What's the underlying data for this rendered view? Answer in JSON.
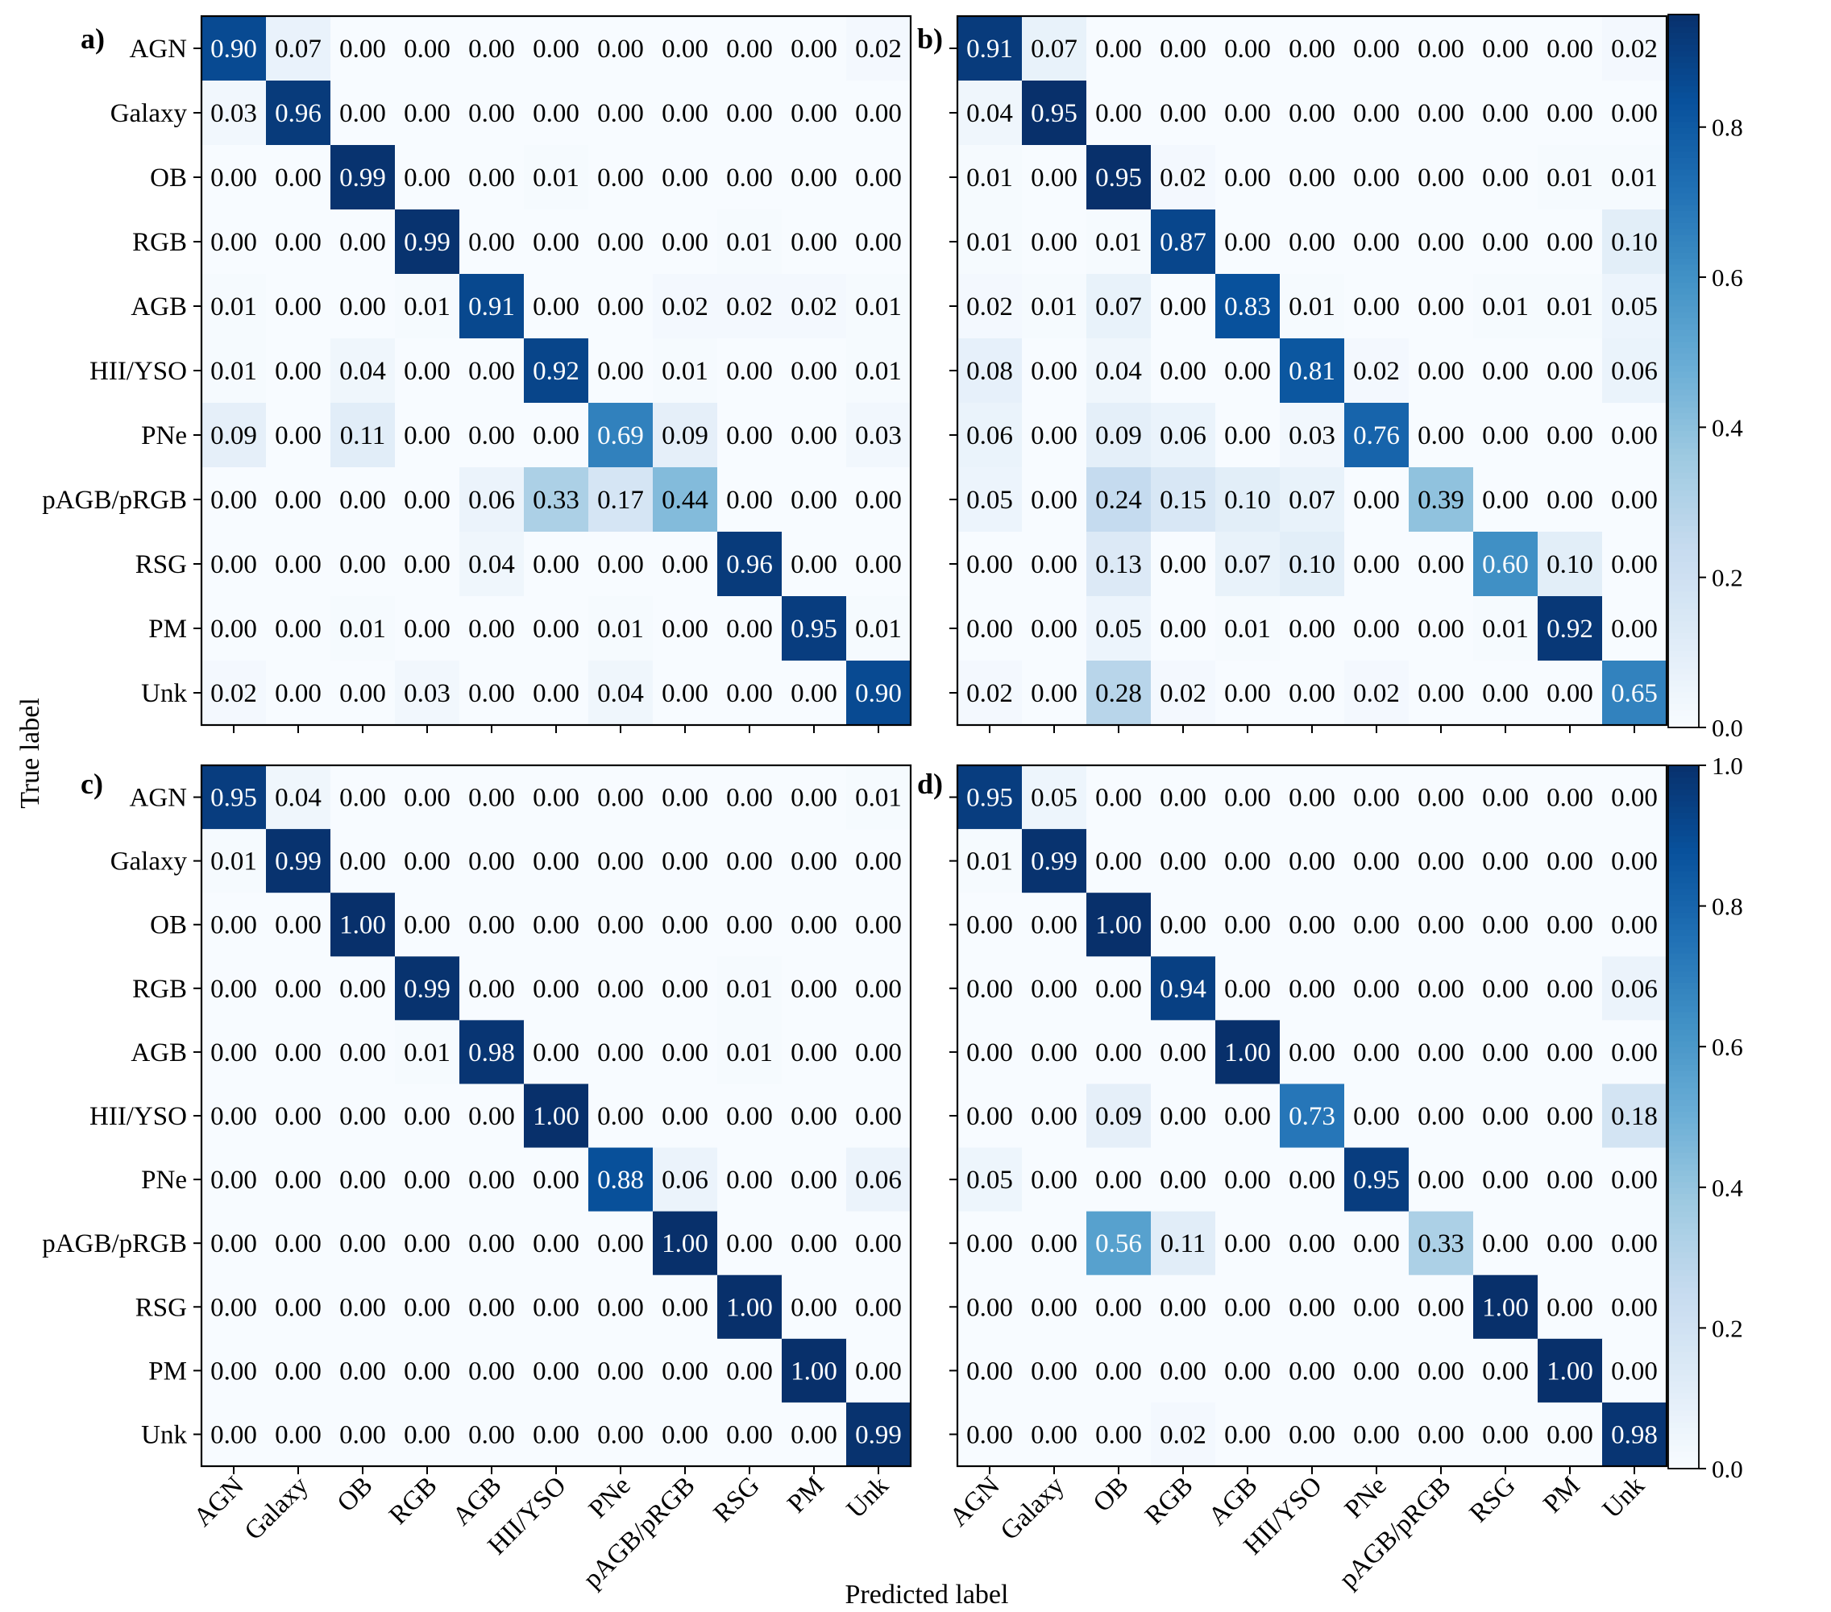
{
  "chart_data": {
    "type": "heatmap",
    "title": "",
    "xlabel": "Predicted label",
    "ylabel": "True label",
    "classes": [
      "AGN",
      "Galaxy",
      "OB",
      "RGB",
      "AGB",
      "HII/YSO",
      "PNe",
      "pAGB/pRGB",
      "RSG",
      "PM",
      "Unk"
    ],
    "colormap": "Blues",
    "panels": [
      {
        "label": "a)",
        "vmax": 1.0,
        "matrix": [
          [
            0.9,
            0.07,
            0.0,
            0.0,
            0.0,
            0.0,
            0.0,
            0.0,
            0.0,
            0.0,
            0.02
          ],
          [
            0.03,
            0.96,
            0.0,
            0.0,
            0.0,
            0.0,
            0.0,
            0.0,
            0.0,
            0.0,
            0.0
          ],
          [
            0.0,
            0.0,
            0.99,
            0.0,
            0.0,
            0.01,
            0.0,
            0.0,
            0.0,
            0.0,
            0.0
          ],
          [
            0.0,
            0.0,
            0.0,
            0.99,
            0.0,
            0.0,
            0.0,
            0.0,
            0.01,
            0.0,
            0.0
          ],
          [
            0.01,
            0.0,
            0.0,
            0.01,
            0.91,
            0.0,
            0.0,
            0.02,
            0.02,
            0.02,
            0.01
          ],
          [
            0.01,
            0.0,
            0.04,
            0.0,
            0.0,
            0.92,
            0.0,
            0.01,
            0.0,
            0.0,
            0.01
          ],
          [
            0.09,
            0.0,
            0.11,
            0.0,
            0.0,
            0.0,
            0.69,
            0.09,
            0.0,
            0.0,
            0.03
          ],
          [
            0.0,
            0.0,
            0.0,
            0.0,
            0.06,
            0.33,
            0.17,
            0.44,
            0.0,
            0.0,
            0.0
          ],
          [
            0.0,
            0.0,
            0.0,
            0.0,
            0.04,
            0.0,
            0.0,
            0.0,
            0.96,
            0.0,
            0.0
          ],
          [
            0.0,
            0.0,
            0.01,
            0.0,
            0.0,
            0.0,
            0.01,
            0.0,
            0.0,
            0.95,
            0.01
          ],
          [
            0.02,
            0.0,
            0.0,
            0.03,
            0.0,
            0.0,
            0.04,
            0.0,
            0.0,
            0.0,
            0.9
          ]
        ]
      },
      {
        "label": "b)",
        "vmax": 0.95,
        "colorbar_ticks": [
          "0.0",
          "0.2",
          "0.4",
          "0.6",
          "0.8"
        ],
        "colorbar_tick_values": [
          0.0,
          0.2,
          0.4,
          0.6,
          0.8
        ],
        "matrix": [
          [
            0.91,
            0.07,
            0.0,
            0.0,
            0.0,
            0.0,
            0.0,
            0.0,
            0.0,
            0.0,
            0.02
          ],
          [
            0.04,
            0.95,
            0.0,
            0.0,
            0.0,
            0.0,
            0.0,
            0.0,
            0.0,
            0.0,
            0.0
          ],
          [
            0.01,
            0.0,
            0.95,
            0.02,
            0.0,
            0.0,
            0.0,
            0.0,
            0.0,
            0.01,
            0.01
          ],
          [
            0.01,
            0.0,
            0.01,
            0.87,
            0.0,
            0.0,
            0.0,
            0.0,
            0.0,
            0.0,
            0.1
          ],
          [
            0.02,
            0.01,
            0.07,
            0.0,
            0.83,
            0.01,
            0.0,
            0.0,
            0.01,
            0.01,
            0.05
          ],
          [
            0.08,
            0.0,
            0.04,
            0.0,
            0.0,
            0.81,
            0.02,
            0.0,
            0.0,
            0.0,
            0.06
          ],
          [
            0.06,
            0.0,
            0.09,
            0.06,
            0.0,
            0.03,
            0.76,
            0.0,
            0.0,
            0.0,
            0.0
          ],
          [
            0.05,
            0.0,
            0.24,
            0.15,
            0.1,
            0.07,
            0.0,
            0.39,
            0.0,
            0.0,
            0.0
          ],
          [
            0.0,
            0.0,
            0.13,
            0.0,
            0.07,
            0.1,
            0.0,
            0.0,
            0.6,
            0.1,
            0.0
          ],
          [
            0.0,
            0.0,
            0.05,
            0.0,
            0.01,
            0.0,
            0.0,
            0.0,
            0.01,
            0.92,
            0.0
          ],
          [
            0.02,
            0.0,
            0.28,
            0.02,
            0.0,
            0.0,
            0.02,
            0.0,
            0.0,
            0.0,
            0.65
          ]
        ]
      },
      {
        "label": "c)",
        "vmax": 1.0,
        "matrix": [
          [
            0.95,
            0.04,
            0.0,
            0.0,
            0.0,
            0.0,
            0.0,
            0.0,
            0.0,
            0.0,
            0.01
          ],
          [
            0.01,
            0.99,
            0.0,
            0.0,
            0.0,
            0.0,
            0.0,
            0.0,
            0.0,
            0.0,
            0.0
          ],
          [
            0.0,
            0.0,
            1.0,
            0.0,
            0.0,
            0.0,
            0.0,
            0.0,
            0.0,
            0.0,
            0.0
          ],
          [
            0.0,
            0.0,
            0.0,
            0.99,
            0.0,
            0.0,
            0.0,
            0.0,
            0.01,
            0.0,
            0.0
          ],
          [
            0.0,
            0.0,
            0.0,
            0.01,
            0.98,
            0.0,
            0.0,
            0.0,
            0.01,
            0.0,
            0.0
          ],
          [
            0.0,
            0.0,
            0.0,
            0.0,
            0.0,
            1.0,
            0.0,
            0.0,
            0.0,
            0.0,
            0.0
          ],
          [
            0.0,
            0.0,
            0.0,
            0.0,
            0.0,
            0.0,
            0.88,
            0.06,
            0.0,
            0.0,
            0.06
          ],
          [
            0.0,
            0.0,
            0.0,
            0.0,
            0.0,
            0.0,
            0.0,
            1.0,
            0.0,
            0.0,
            0.0
          ],
          [
            0.0,
            0.0,
            0.0,
            0.0,
            0.0,
            0.0,
            0.0,
            0.0,
            1.0,
            0.0,
            0.0
          ],
          [
            0.0,
            0.0,
            0.0,
            0.0,
            0.0,
            0.0,
            0.0,
            0.0,
            0.0,
            1.0,
            0.0
          ],
          [
            0.0,
            0.0,
            0.0,
            0.0,
            0.0,
            0.0,
            0.0,
            0.0,
            0.0,
            0.0,
            0.99
          ]
        ]
      },
      {
        "label": "d)",
        "vmax": 1.0,
        "colorbar_ticks": [
          "0.0",
          "0.2",
          "0.4",
          "0.6",
          "0.8",
          "1.0"
        ],
        "colorbar_tick_values": [
          0.0,
          0.2,
          0.4,
          0.6,
          0.8,
          1.0
        ],
        "matrix": [
          [
            0.95,
            0.05,
            0.0,
            0.0,
            0.0,
            0.0,
            0.0,
            0.0,
            0.0,
            0.0,
            0.0
          ],
          [
            0.01,
            0.99,
            0.0,
            0.0,
            0.0,
            0.0,
            0.0,
            0.0,
            0.0,
            0.0,
            0.0
          ],
          [
            0.0,
            0.0,
            1.0,
            0.0,
            0.0,
            0.0,
            0.0,
            0.0,
            0.0,
            0.0,
            0.0
          ],
          [
            0.0,
            0.0,
            0.0,
            0.94,
            0.0,
            0.0,
            0.0,
            0.0,
            0.0,
            0.0,
            0.06
          ],
          [
            0.0,
            0.0,
            0.0,
            0.0,
            1.0,
            0.0,
            0.0,
            0.0,
            0.0,
            0.0,
            0.0
          ],
          [
            0.0,
            0.0,
            0.09,
            0.0,
            0.0,
            0.73,
            0.0,
            0.0,
            0.0,
            0.0,
            0.18
          ],
          [
            0.05,
            0.0,
            0.0,
            0.0,
            0.0,
            0.0,
            0.95,
            0.0,
            0.0,
            0.0,
            0.0
          ],
          [
            0.0,
            0.0,
            0.56,
            0.11,
            0.0,
            0.0,
            0.0,
            0.33,
            0.0,
            0.0,
            0.0
          ],
          [
            0.0,
            0.0,
            0.0,
            0.0,
            0.0,
            0.0,
            0.0,
            0.0,
            1.0,
            0.0,
            0.0
          ],
          [
            0.0,
            0.0,
            0.0,
            0.0,
            0.0,
            0.0,
            0.0,
            0.0,
            0.0,
            1.0,
            0.0
          ],
          [
            0.0,
            0.0,
            0.0,
            0.02,
            0.0,
            0.0,
            0.0,
            0.0,
            0.0,
            0.0,
            0.98
          ]
        ]
      }
    ]
  }
}
